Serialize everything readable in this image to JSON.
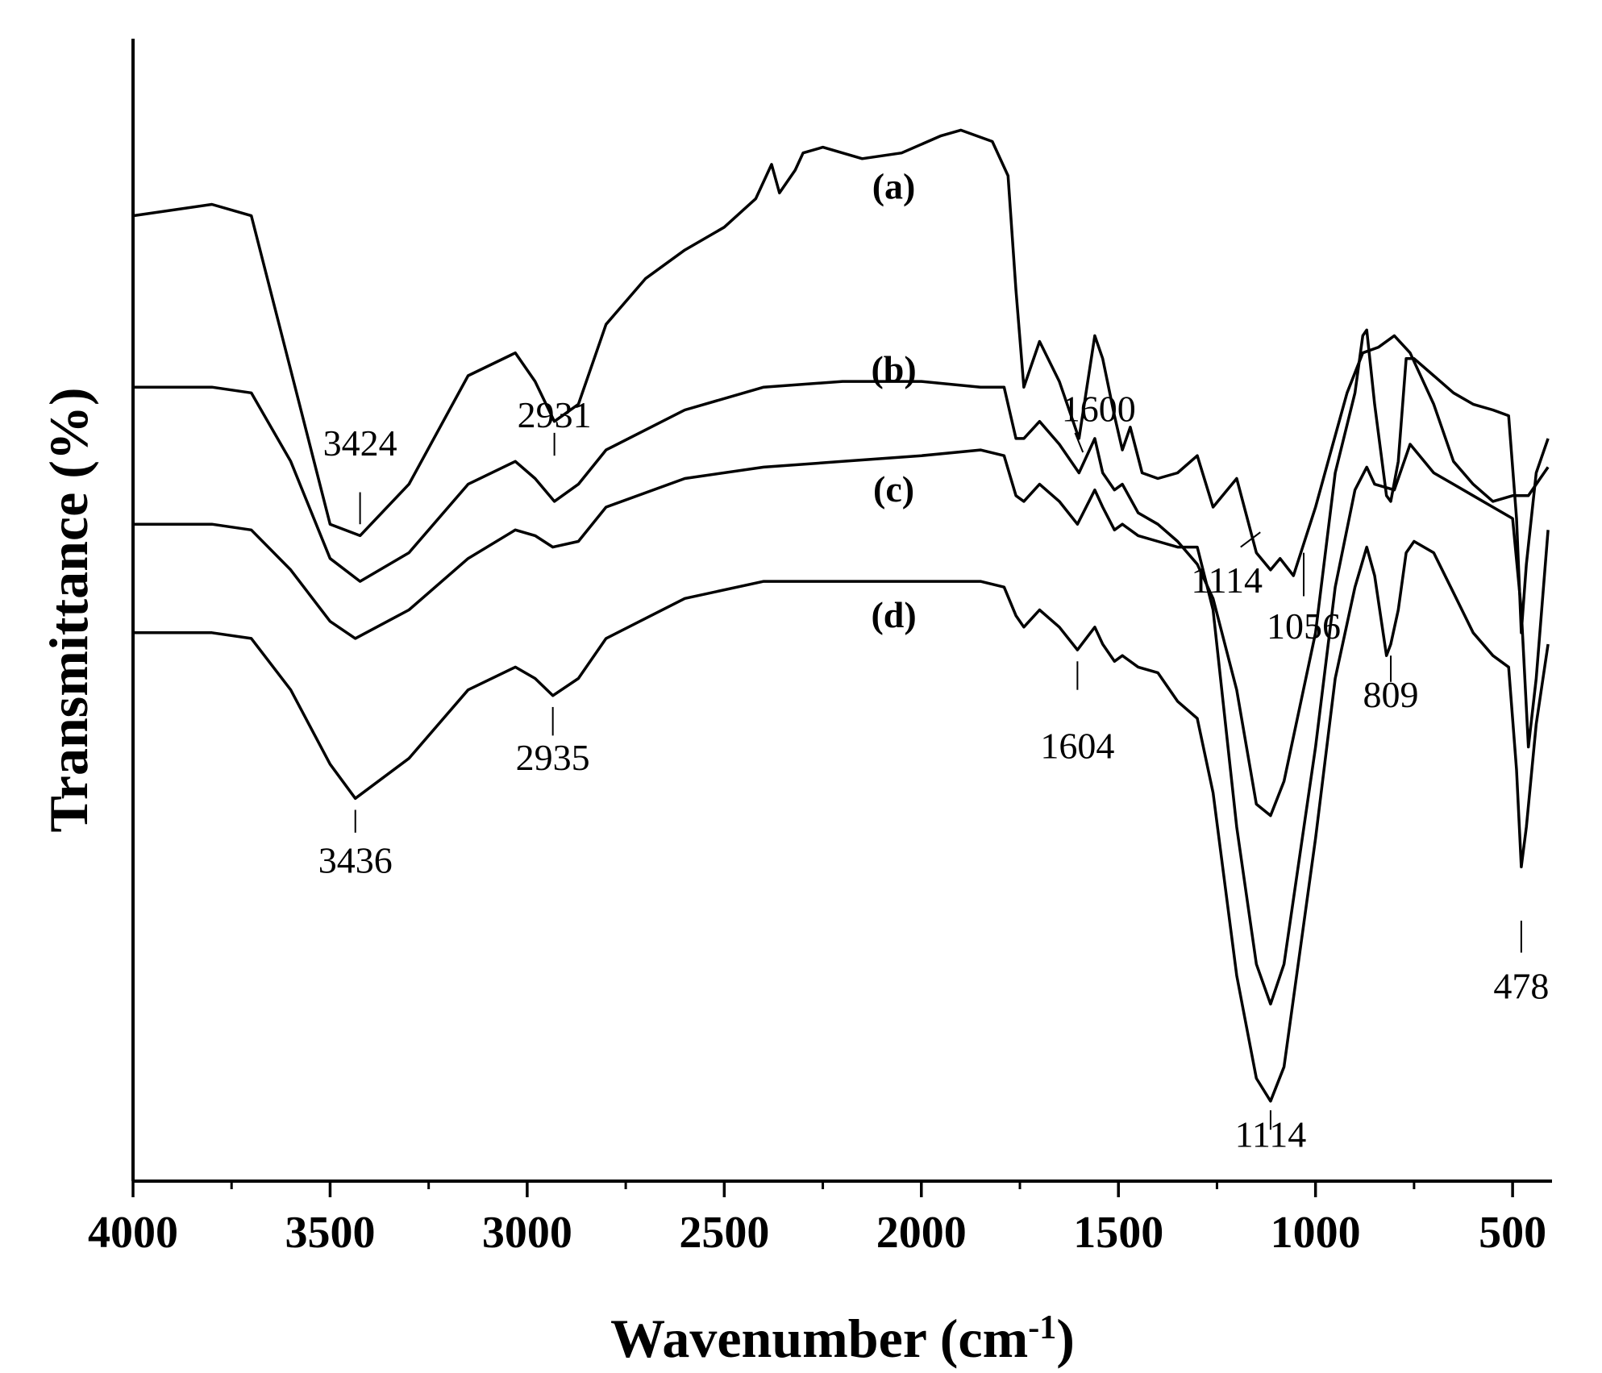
{
  "chart_data": {
    "type": "line",
    "xlabel": "Wavenumber (cm",
    "xlabel_sup": "-1",
    "xlabel_close": ")",
    "ylabel": "Transmittance (%)",
    "xlim": [
      4000,
      400
    ],
    "x_reversed": true,
    "ylim": [
      0,
      100
    ],
    "y_ticks_shown": false,
    "grid": false,
    "x_ticks": [
      "4000",
      "3500",
      "3000",
      "2500",
      "2000",
      "1500",
      "1000",
      "500"
    ],
    "x_tick_values": [
      4000,
      3500,
      3000,
      2500,
      2000,
      1500,
      1000,
      500
    ],
    "series": [
      {
        "label": "(a)",
        "points": [
          [
            4000,
            84.5
          ],
          [
            3800,
            85.5
          ],
          [
            3700,
            84.5
          ],
          [
            3600,
            71
          ],
          [
            3500,
            57.5
          ],
          [
            3424,
            56.5
          ],
          [
            3300,
            61
          ],
          [
            3150,
            70.5
          ],
          [
            3030,
            72.5
          ],
          [
            2980,
            70
          ],
          [
            2931,
            66.5
          ],
          [
            2870,
            68
          ],
          [
            2800,
            75
          ],
          [
            2700,
            79
          ],
          [
            2600,
            81.5
          ],
          [
            2500,
            83.5
          ],
          [
            2420,
            86
          ],
          [
            2380,
            89
          ],
          [
            2360,
            86.5
          ],
          [
            2320,
            88.5
          ],
          [
            2300,
            90
          ],
          [
            2250,
            90.5
          ],
          [
            2150,
            89.5
          ],
          [
            2050,
            90
          ],
          [
            1950,
            91.5
          ],
          [
            1900,
            92
          ],
          [
            1820,
            91
          ],
          [
            1780,
            88
          ],
          [
            1760,
            78
          ],
          [
            1740,
            69.5
          ],
          [
            1700,
            73.5
          ],
          [
            1650,
            70
          ],
          [
            1600,
            65
          ],
          [
            1560,
            74
          ],
          [
            1540,
            72
          ],
          [
            1510,
            67
          ],
          [
            1490,
            64
          ],
          [
            1470,
            66
          ],
          [
            1440,
            62
          ],
          [
            1400,
            61.5
          ],
          [
            1350,
            62
          ],
          [
            1300,
            63.5
          ],
          [
            1260,
            59
          ],
          [
            1200,
            61.5
          ],
          [
            1150,
            55
          ],
          [
            1114,
            53.5
          ],
          [
            1090,
            54.5
          ],
          [
            1056,
            53
          ],
          [
            1000,
            59
          ],
          [
            960,
            64
          ],
          [
            920,
            69
          ],
          [
            880,
            72.5
          ],
          [
            840,
            73
          ],
          [
            800,
            74
          ],
          [
            760,
            72.5
          ],
          [
            700,
            68
          ],
          [
            650,
            63
          ],
          [
            600,
            61
          ],
          [
            550,
            59.5
          ],
          [
            500,
            60
          ],
          [
            460,
            60
          ],
          [
            430,
            61.5
          ],
          [
            410,
            62.5
          ]
        ]
      },
      {
        "label": "(b)",
        "points": [
          [
            4000,
            69.5
          ],
          [
            3800,
            69.5
          ],
          [
            3700,
            69
          ],
          [
            3600,
            63
          ],
          [
            3500,
            54.5
          ],
          [
            3424,
            52.5
          ],
          [
            3300,
            55
          ],
          [
            3150,
            61
          ],
          [
            3030,
            63
          ],
          [
            2980,
            61.5
          ],
          [
            2931,
            59.5
          ],
          [
            2870,
            61
          ],
          [
            2800,
            64
          ],
          [
            2600,
            67.5
          ],
          [
            2400,
            69.5
          ],
          [
            2200,
            70
          ],
          [
            2000,
            70
          ],
          [
            1850,
            69.5
          ],
          [
            1790,
            69.5
          ],
          [
            1760,
            65
          ],
          [
            1740,
            65
          ],
          [
            1700,
            66.5
          ],
          [
            1650,
            64.5
          ],
          [
            1600,
            62
          ],
          [
            1560,
            65
          ],
          [
            1540,
            62
          ],
          [
            1510,
            60.5
          ],
          [
            1490,
            61
          ],
          [
            1450,
            58.5
          ],
          [
            1400,
            57.5
          ],
          [
            1350,
            56
          ],
          [
            1300,
            54
          ],
          [
            1260,
            51
          ],
          [
            1200,
            43
          ],
          [
            1150,
            33
          ],
          [
            1114,
            32
          ],
          [
            1080,
            35
          ],
          [
            1000,
            48
          ],
          [
            950,
            62
          ],
          [
            900,
            69
          ],
          [
            880,
            74
          ],
          [
            870,
            74.5
          ],
          [
            850,
            68
          ],
          [
            820,
            60
          ],
          [
            809,
            59.5
          ],
          [
            790,
            63
          ],
          [
            770,
            72
          ],
          [
            750,
            72
          ],
          [
            700,
            70.5
          ],
          [
            650,
            69
          ],
          [
            600,
            68
          ],
          [
            550,
            67.5
          ],
          [
            510,
            67
          ],
          [
            490,
            58
          ],
          [
            478,
            48
          ],
          [
            465,
            54
          ],
          [
            440,
            62
          ],
          [
            410,
            65
          ]
        ]
      },
      {
        "label": "(c)",
        "points": [
          [
            4000,
            57.5
          ],
          [
            3800,
            57.5
          ],
          [
            3700,
            57
          ],
          [
            3600,
            53.5
          ],
          [
            3500,
            49
          ],
          [
            3436,
            47.5
          ],
          [
            3300,
            50
          ],
          [
            3150,
            54.5
          ],
          [
            3030,
            57
          ],
          [
            2980,
            56.5
          ],
          [
            2935,
            55.5
          ],
          [
            2870,
            56
          ],
          [
            2800,
            59
          ],
          [
            2600,
            61.5
          ],
          [
            2400,
            62.5
          ],
          [
            2200,
            63
          ],
          [
            2000,
            63.5
          ],
          [
            1850,
            64
          ],
          [
            1790,
            63.5
          ],
          [
            1760,
            60
          ],
          [
            1740,
            59.5
          ],
          [
            1700,
            61
          ],
          [
            1650,
            59.5
          ],
          [
            1604,
            57.5
          ],
          [
            1560,
            60.5
          ],
          [
            1540,
            59
          ],
          [
            1510,
            57
          ],
          [
            1490,
            57.5
          ],
          [
            1450,
            56.5
          ],
          [
            1400,
            56
          ],
          [
            1350,
            55.5
          ],
          [
            1300,
            55.5
          ],
          [
            1260,
            50
          ],
          [
            1200,
            31
          ],
          [
            1150,
            19
          ],
          [
            1114,
            15.5
          ],
          [
            1080,
            19
          ],
          [
            1000,
            38
          ],
          [
            950,
            52
          ],
          [
            900,
            60.5
          ],
          [
            870,
            62.5
          ],
          [
            850,
            61
          ],
          [
            800,
            60.5
          ],
          [
            760,
            64.5
          ],
          [
            700,
            62
          ],
          [
            650,
            61
          ],
          [
            600,
            60
          ],
          [
            550,
            59
          ],
          [
            500,
            58
          ],
          [
            478,
            50
          ],
          [
            460,
            38
          ],
          [
            440,
            44
          ],
          [
            410,
            57
          ]
        ]
      },
      {
        "label": "(d)",
        "points": [
          [
            4000,
            48
          ],
          [
            3800,
            48
          ],
          [
            3700,
            47.5
          ],
          [
            3600,
            43
          ],
          [
            3500,
            36.5
          ],
          [
            3436,
            33.5
          ],
          [
            3300,
            37
          ],
          [
            3150,
            43
          ],
          [
            3030,
            45
          ],
          [
            2980,
            44
          ],
          [
            2935,
            42.5
          ],
          [
            2870,
            44
          ],
          [
            2800,
            47.5
          ],
          [
            2600,
            51
          ],
          [
            2400,
            52.5
          ],
          [
            2200,
            52.5
          ],
          [
            2000,
            52.5
          ],
          [
            1850,
            52.5
          ],
          [
            1790,
            52
          ],
          [
            1760,
            49.5
          ],
          [
            1740,
            48.5
          ],
          [
            1700,
            50
          ],
          [
            1650,
            48.5
          ],
          [
            1604,
            46.5
          ],
          [
            1560,
            48.5
          ],
          [
            1540,
            47
          ],
          [
            1510,
            45.5
          ],
          [
            1490,
            46
          ],
          [
            1450,
            45
          ],
          [
            1400,
            44.5
          ],
          [
            1350,
            42
          ],
          [
            1300,
            40.5
          ],
          [
            1260,
            34
          ],
          [
            1200,
            18
          ],
          [
            1150,
            9
          ],
          [
            1114,
            7
          ],
          [
            1080,
            10
          ],
          [
            1000,
            30
          ],
          [
            950,
            44
          ],
          [
            900,
            52
          ],
          [
            870,
            55.5
          ],
          [
            850,
            53
          ],
          [
            820,
            46
          ],
          [
            809,
            47
          ],
          [
            790,
            50
          ],
          [
            770,
            55
          ],
          [
            750,
            56
          ],
          [
            700,
            55
          ],
          [
            650,
            51.5
          ],
          [
            600,
            48
          ],
          [
            550,
            46
          ],
          [
            510,
            45
          ],
          [
            490,
            36
          ],
          [
            478,
            27.5
          ],
          [
            465,
            31
          ],
          [
            440,
            40
          ],
          [
            410,
            47
          ]
        ]
      }
    ],
    "series_labels": [
      {
        "text": "(a)",
        "x": 2070,
        "y": 86
      },
      {
        "text": "(b)",
        "x": 2070,
        "y": 70
      },
      {
        "text": "(c)",
        "x": 2070,
        "y": 59.5
      },
      {
        "text": "(d)",
        "x": 2070,
        "y": 48.5
      }
    ],
    "peak_labels": [
      {
        "text": "3424",
        "x": 3424,
        "y": 63.5,
        "leader_top": 60.3,
        "leader_bottom": 57.5
      },
      {
        "text": "2931",
        "x": 2931,
        "y": 66,
        "leader_top": 65.5,
        "leader_bottom": 63.5
      },
      {
        "text": "1600",
        "x": 1550,
        "y": 66.5,
        "leader_top": 65.5,
        "leader_bottom": 63.8,
        "leader_x_top": 1610,
        "leader_x_bottom": 1590
      },
      {
        "text": "1114",
        "x": 1225,
        "y": 51.5,
        "leader_top": 56.8,
        "leader_bottom": 55.5,
        "leader_x_top": 1140,
        "leader_x_bottom": 1190
      },
      {
        "text": "1056",
        "x": 1030,
        "y": 47.5,
        "leader_top": 55,
        "leader_bottom": 51.2
      },
      {
        "text": "809",
        "x": 809,
        "y": 41.5,
        "leader_top": 46,
        "leader_bottom": 43.7
      },
      {
        "text": "2935",
        "x": 2935,
        "y": 36,
        "leader_top": 41.5,
        "leader_bottom": 39
      },
      {
        "text": "1604",
        "x": 1604,
        "y": 37,
        "leader_top": 45.5,
        "leader_bottom": 43
      },
      {
        "text": "3436",
        "x": 3436,
        "y": 27,
        "leader_top": 32.5,
        "leader_bottom": 30.5
      },
      {
        "text": "478",
        "x": 478,
        "y": 16,
        "leader_top": 22.8,
        "leader_bottom": 20
      },
      {
        "text": "1114",
        "x": 1114,
        "y": 3,
        "leader_top": 6.2,
        "leader_bottom": 4.5
      }
    ]
  }
}
